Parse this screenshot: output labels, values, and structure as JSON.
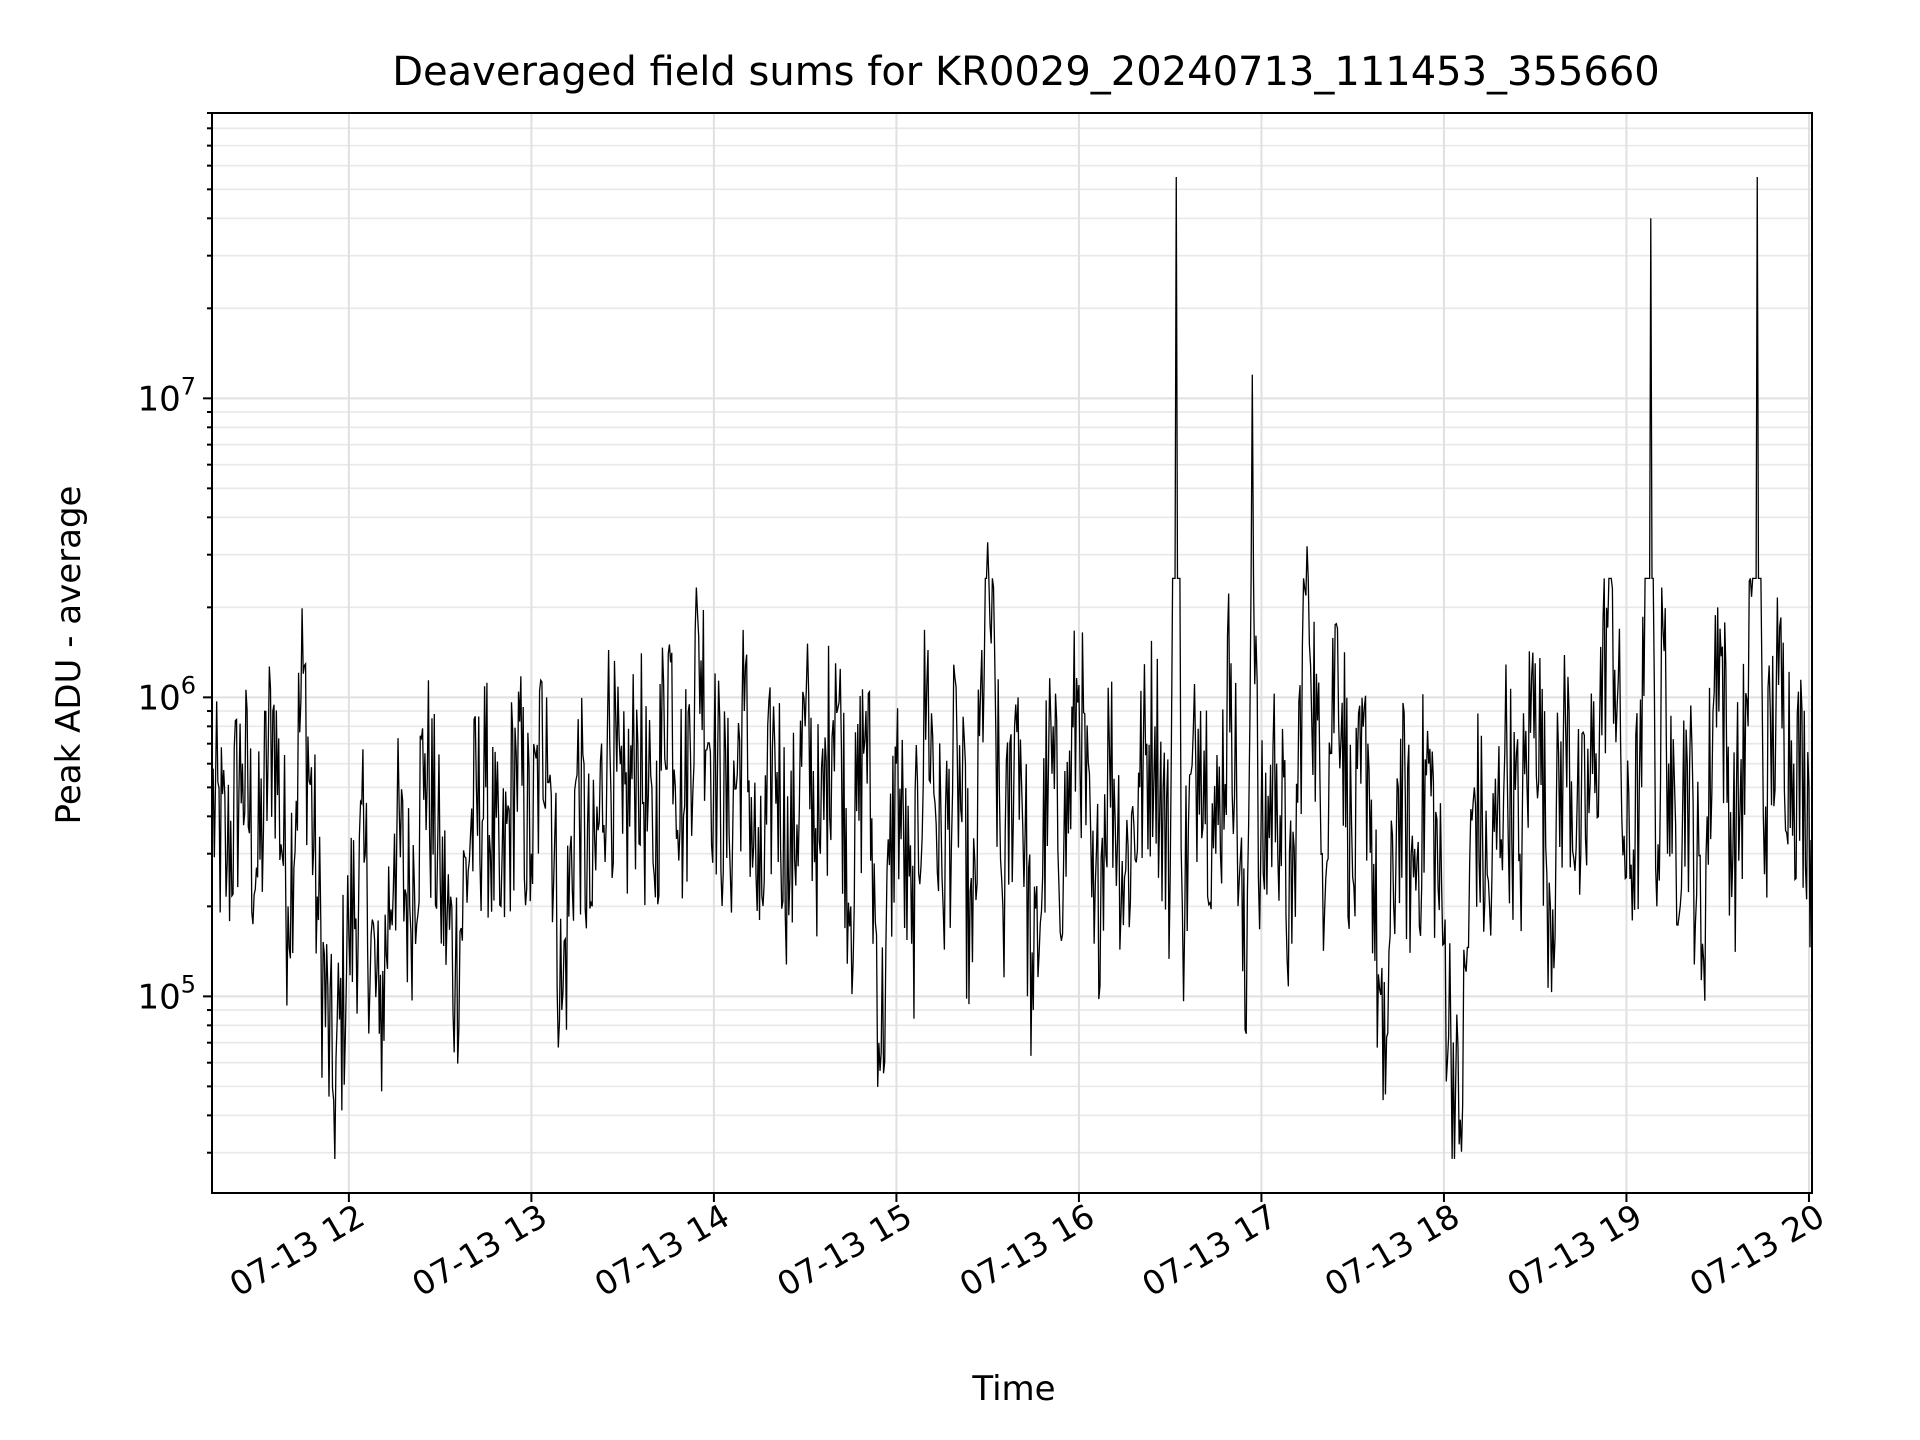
{
  "chart_data": {
    "type": "line",
    "title": "Deaveraged field sums for KR0029_20240713_111453_355660",
    "xlabel": "Time",
    "ylabel": "Peak ADU - average",
    "yscale": "log",
    "grid": "on (major and minor)",
    "line_color": "#000000",
    "x_range": [
      "2024-07-13 11:15",
      "2024-07-13 20:01"
    ],
    "y_range": [
      22000,
      90000000
    ],
    "x_tick_labels": [
      "07-13 12",
      "07-13 13",
      "07-13 14",
      "07-13 15",
      "07-13 16",
      "07-13 17",
      "07-13 18",
      "07-13 19",
      "07-13 20"
    ],
    "x_tick_times": [
      "2024-07-13 12:00",
      "2024-07-13 13:00",
      "2024-07-13 14:00",
      "2024-07-13 15:00",
      "2024-07-13 16:00",
      "2024-07-13 17:00",
      "2024-07-13 18:00",
      "2024-07-13 19:00",
      "2024-07-13 20:00"
    ],
    "y_tick_labels": [
      {
        "base": "10",
        "exp": "5",
        "value": 100000
      },
      {
        "base": "10",
        "exp": "6",
        "value": 1000000
      },
      {
        "base": "10",
        "exp": "7",
        "value": 10000000
      }
    ],
    "series": [
      {
        "points": [
          [
            "11:15",
            450000
          ],
          [
            "11:20",
            280000
          ],
          [
            "11:25",
            600000
          ],
          [
            "11:30",
            250000
          ],
          [
            "11:35",
            900000
          ],
          [
            "11:40",
            200000
          ],
          [
            "11:45",
            1200000
          ],
          [
            "11:50",
            180000
          ],
          [
            "11:55",
            45000
          ],
          [
            "12:00",
            160000
          ],
          [
            "12:05",
            280000
          ],
          [
            "12:10",
            75000
          ],
          [
            "12:15",
            350000
          ],
          [
            "12:20",
            200000
          ],
          [
            "12:25",
            650000
          ],
          [
            "12:30",
            250000
          ],
          [
            "12:35",
            120000
          ],
          [
            "12:40",
            350000
          ],
          [
            "12:45",
            500000
          ],
          [
            "12:50",
            200000
          ],
          [
            "12:55",
            650000
          ],
          [
            "13:00",
            300000
          ],
          [
            "13:05",
            1000000
          ],
          [
            "13:10",
            90000
          ],
          [
            "13:15",
            550000
          ],
          [
            "13:20",
            200000
          ],
          [
            "13:25",
            800000
          ],
          [
            "13:30",
            350000
          ],
          [
            "13:35",
            700000
          ],
          [
            "13:40",
            280000
          ],
          [
            "13:45",
            1400000
          ],
          [
            "13:50",
            400000
          ],
          [
            "13:55",
            1600000
          ],
          [
            "14:00",
            600000
          ],
          [
            "14:05",
            350000
          ],
          [
            "14:10",
            900000
          ],
          [
            "14:15",
            180000
          ],
          [
            "14:20",
            700000
          ],
          [
            "14:25",
            250000
          ],
          [
            "14:30",
            800000
          ],
          [
            "14:35",
            300000
          ],
          [
            "14:40",
            1300000
          ],
          [
            "14:45",
            200000
          ],
          [
            "14:50",
            900000
          ],
          [
            "14:55",
            65000
          ],
          [
            "15:00",
            600000
          ],
          [
            "15:05",
            150000
          ],
          [
            "15:10",
            1100000
          ],
          [
            "15:15",
            250000
          ],
          [
            "15:20",
            650000
          ],
          [
            "15:25",
            130000
          ],
          [
            "15:30",
            3300000
          ],
          [
            "15:35",
            200000
          ],
          [
            "15:40",
            1000000
          ],
          [
            "15:45",
            90000
          ],
          [
            "15:50",
            600000
          ],
          [
            "15:55",
            300000
          ],
          [
            "16:00",
            1100000
          ],
          [
            "16:05",
            150000
          ],
          [
            "16:10",
            700000
          ],
          [
            "16:15",
            250000
          ],
          [
            "16:20",
            500000
          ],
          [
            "16:25",
            800000
          ],
          [
            "16:30",
            250000
          ],
          [
            "16:32",
            55000000
          ],
          [
            "16:34",
            200000
          ],
          [
            "16:40",
            900000
          ],
          [
            "16:45",
            300000
          ],
          [
            "16:50",
            1300000
          ],
          [
            "16:55",
            75000
          ],
          [
            "16:57",
            12000000
          ],
          [
            "16:59",
            250000
          ],
          [
            "17:05",
            600000
          ],
          [
            "17:10",
            150000
          ],
          [
            "17:15",
            3200000
          ],
          [
            "17:20",
            300000
          ],
          [
            "17:25",
            1700000
          ],
          [
            "17:30",
            250000
          ],
          [
            "17:35",
            700000
          ],
          [
            "17:40",
            45000
          ],
          [
            "17:45",
            500000
          ],
          [
            "17:50",
            250000
          ],
          [
            "17:55",
            600000
          ],
          [
            "18:00",
            150000
          ],
          [
            "18:05",
            32000
          ],
          [
            "18:10",
            500000
          ],
          [
            "18:15",
            200000
          ],
          [
            "18:20",
            650000
          ],
          [
            "18:25",
            300000
          ],
          [
            "18:30",
            1300000
          ],
          [
            "18:35",
            200000
          ],
          [
            "18:40",
            800000
          ],
          [
            "18:45",
            300000
          ],
          [
            "18:50",
            650000
          ],
          [
            "18:55",
            2500000
          ],
          [
            "19:00",
            250000
          ],
          [
            "19:05",
            500000
          ],
          [
            "19:08",
            40000000
          ],
          [
            "19:10",
            200000
          ],
          [
            "19:12",
            1700000
          ],
          [
            "19:15",
            300000
          ],
          [
            "19:20",
            600000
          ],
          [
            "19:25",
            150000
          ],
          [
            "19:30",
            2000000
          ],
          [
            "19:35",
            300000
          ],
          [
            "19:40",
            800000
          ],
          [
            "19:43",
            55000000
          ],
          [
            "19:45",
            400000
          ],
          [
            "19:50",
            1100000
          ],
          [
            "19:55",
            600000
          ],
          [
            "20:00",
            500000
          ],
          [
            "20:01",
            180000
          ]
        ]
      }
    ]
  }
}
